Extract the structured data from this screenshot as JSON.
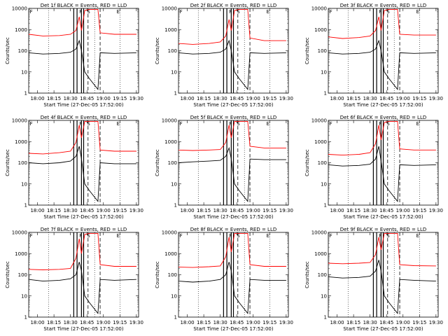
{
  "chart_data": {
    "type": "line",
    "grid": "3x3",
    "y_scale": "log",
    "ylim": [
      1,
      10000
    ],
    "ylabel": "Counts/sec",
    "xlabel": "Start Time (27-Dec-05 17:52:00)",
    "x_tick_labels": [
      "18:00",
      "18:15",
      "18:30",
      "18:45",
      "19:00",
      "19:15",
      "19:30"
    ],
    "y_tick_labels": [
      "1",
      "10",
      "100",
      "1000",
      "10000"
    ],
    "series_colors": {
      "events": "#000000",
      "lld": "#ff0000"
    },
    "markers": {
      "solid_lines": [
        "18:33",
        "18:36",
        "18:40",
        "18:42"
      ],
      "dashed_lines": [
        "18:46",
        "18:57"
      ],
      "dotted_lines": [
        "18:10",
        "18:52",
        "19:15"
      ],
      "letters": [
        "F",
        "F",
        "S",
        "E"
      ]
    },
    "panels": [
      {
        "title": "Det 1f BLACK = Events, RED = LLD",
        "events": {
          "x": [
            "17:52",
            "18:05",
            "18:20",
            "18:30",
            "18:35",
            "18:38",
            "18:40",
            "18:43",
            "18:47",
            "18:55",
            "18:57",
            "19:10",
            "19:30"
          ],
          "y": [
            80,
            70,
            75,
            85,
            120,
            300,
            100,
            10,
            5,
            1.5,
            80,
            75,
            80
          ]
        },
        "lld": {
          "x": [
            "17:52",
            "18:05",
            "18:20",
            "18:30",
            "18:35",
            "18:38",
            "18:40",
            "18:43",
            "18:47",
            "18:55",
            "18:57",
            "19:10",
            "19:30"
          ],
          "y": [
            600,
            500,
            520,
            600,
            900,
            4000,
            900,
            8000,
            9000,
            9000,
            700,
            600,
            600
          ]
        }
      },
      {
        "title": "Det 2f BLACK = Events, RED = LLD",
        "events": {
          "x": [
            "17:52",
            "18:05",
            "18:20",
            "18:30",
            "18:35",
            "18:38",
            "18:40",
            "18:43",
            "18:47",
            "18:55",
            "18:57",
            "19:10",
            "19:30"
          ],
          "y": [
            80,
            70,
            75,
            85,
            120,
            300,
            100,
            10,
            5,
            1.5,
            80,
            75,
            80
          ]
        },
        "lld": {
          "x": [
            "17:52",
            "18:05",
            "18:20",
            "18:30",
            "18:35",
            "18:38",
            "18:40",
            "18:43",
            "18:47",
            "18:55",
            "18:57",
            "19:10",
            "19:30"
          ],
          "y": [
            220,
            200,
            220,
            260,
            500,
            3000,
            900,
            8000,
            9000,
            9000,
            400,
            300,
            300
          ]
        }
      },
      {
        "title": "Det 3f BLACK = Events, RED = LLD",
        "events": {
          "x": [
            "17:52",
            "18:05",
            "18:20",
            "18:30",
            "18:35",
            "18:38",
            "18:40",
            "18:43",
            "18:47",
            "18:55",
            "18:57",
            "19:10",
            "19:30"
          ],
          "y": [
            80,
            70,
            75,
            85,
            120,
            300,
            100,
            10,
            5,
            1.5,
            80,
            75,
            80
          ]
        },
        "lld": {
          "x": [
            "17:52",
            "18:05",
            "18:20",
            "18:30",
            "18:35",
            "18:38",
            "18:40",
            "18:43",
            "18:47",
            "18:55",
            "18:57",
            "19:10",
            "19:30"
          ],
          "y": [
            450,
            380,
            420,
            500,
            900,
            4000,
            900,
            8000,
            9000,
            9000,
            600,
            550,
            550
          ]
        }
      },
      {
        "title": "Det 4f BLACK = Events, RED = LLD",
        "events": {
          "x": [
            "17:52",
            "18:05",
            "18:20",
            "18:30",
            "18:35",
            "18:38",
            "18:40",
            "18:43",
            "18:47",
            "18:55",
            "18:57",
            "19:10",
            "19:30"
          ],
          "y": [
            100,
            90,
            100,
            120,
            200,
            600,
            150,
            10,
            5,
            1.5,
            100,
            90,
            90
          ]
        },
        "lld": {
          "x": [
            "17:52",
            "18:05",
            "18:20",
            "18:30",
            "18:35",
            "18:38",
            "18:40",
            "18:43",
            "18:47",
            "18:55",
            "18:57",
            "19:10",
            "19:30"
          ],
          "y": [
            280,
            260,
            300,
            350,
            900,
            6000,
            1500,
            9000,
            9000,
            9000,
            400,
            350,
            350
          ]
        }
      },
      {
        "title": "Det 5f BLACK = Events, RED = LLD",
        "events": {
          "x": [
            "17:52",
            "18:05",
            "18:20",
            "18:30",
            "18:35",
            "18:38",
            "18:40",
            "18:43",
            "18:47",
            "18:55",
            "18:57",
            "19:10",
            "19:30"
          ],
          "y": [
            100,
            110,
            120,
            130,
            200,
            500,
            150,
            10,
            5,
            1.5,
            150,
            140,
            140
          ]
        },
        "lld": {
          "x": [
            "17:52",
            "18:05",
            "18:20",
            "18:30",
            "18:35",
            "18:38",
            "18:40",
            "18:43",
            "18:47",
            "18:55",
            "18:57",
            "19:10",
            "19:30"
          ],
          "y": [
            400,
            380,
            400,
            420,
            900,
            6000,
            1500,
            9000,
            9000,
            9000,
            600,
            500,
            500
          ]
        }
      },
      {
        "title": "Det 6f BLACK = Events, RED = LLD",
        "events": {
          "x": [
            "17:52",
            "18:05",
            "18:20",
            "18:30",
            "18:35",
            "18:38",
            "18:40",
            "18:43",
            "18:47",
            "18:55",
            "18:57",
            "19:10",
            "19:30"
          ],
          "y": [
            80,
            70,
            75,
            85,
            150,
            600,
            120,
            10,
            5,
            1.5,
            80,
            75,
            80
          ]
        },
        "lld": {
          "x": [
            "17:52",
            "18:05",
            "18:20",
            "18:30",
            "18:35",
            "18:38",
            "18:40",
            "18:43",
            "18:47",
            "18:55",
            "18:57",
            "19:10",
            "19:30"
          ],
          "y": [
            250,
            230,
            250,
            300,
            800,
            6000,
            1200,
            8000,
            9000,
            9000,
            450,
            400,
            400
          ]
        }
      },
      {
        "title": "Det 7f BLACK = Events, RED = LLD",
        "events": {
          "x": [
            "17:52",
            "18:05",
            "18:20",
            "18:30",
            "18:35",
            "18:38",
            "18:40",
            "18:43",
            "18:47",
            "18:55",
            "18:57",
            "19:10",
            "19:30"
          ],
          "y": [
            60,
            50,
            55,
            65,
            100,
            400,
            150,
            10,
            5,
            1.5,
            60,
            55,
            60
          ]
        },
        "lld": {
          "x": [
            "17:52",
            "18:05",
            "18:20",
            "18:30",
            "18:35",
            "18:38",
            "18:40",
            "18:43",
            "18:47",
            "18:55",
            "18:57",
            "19:10",
            "19:30"
          ],
          "y": [
            180,
            170,
            180,
            200,
            600,
            5000,
            1000,
            8000,
            9000,
            9000,
            300,
            250,
            250
          ]
        }
      },
      {
        "title": "Det 8f BLACK = Events, RED = LLD",
        "events": {
          "x": [
            "17:52",
            "18:05",
            "18:20",
            "18:30",
            "18:35",
            "18:38",
            "18:40",
            "18:43",
            "18:47",
            "18:55",
            "18:57",
            "19:10",
            "19:30"
          ],
          "y": [
            50,
            45,
            50,
            60,
            100,
            400,
            150,
            10,
            5,
            1.5,
            60,
            55,
            55
          ]
        },
        "lld": {
          "x": [
            "17:52",
            "18:05",
            "18:20",
            "18:30",
            "18:35",
            "18:38",
            "18:40",
            "18:43",
            "18:47",
            "18:55",
            "18:57",
            "19:10",
            "19:30"
          ],
          "y": [
            230,
            220,
            240,
            260,
            700,
            6000,
            1200,
            9000,
            9000,
            9000,
            300,
            250,
            250
          ]
        }
      },
      {
        "title": "Det 9f BLACK = Events, RED = LLD",
        "events": {
          "x": [
            "17:52",
            "18:05",
            "18:20",
            "18:30",
            "18:35",
            "18:38",
            "18:40",
            "18:43",
            "18:47",
            "18:55",
            "18:57",
            "19:10",
            "19:30"
          ],
          "y": [
            80,
            70,
            75,
            85,
            150,
            500,
            150,
            10,
            5,
            1.5,
            60,
            55,
            50
          ]
        },
        "lld": {
          "x": [
            "17:52",
            "18:05",
            "18:20",
            "18:30",
            "18:35",
            "18:38",
            "18:40",
            "18:43",
            "18:47",
            "18:55",
            "18:57",
            "19:10",
            "19:30"
          ],
          "y": [
            350,
            330,
            350,
            380,
            900,
            6000,
            1500,
            9000,
            9000,
            9000,
            300,
            270,
            260
          ]
        }
      }
    ]
  }
}
